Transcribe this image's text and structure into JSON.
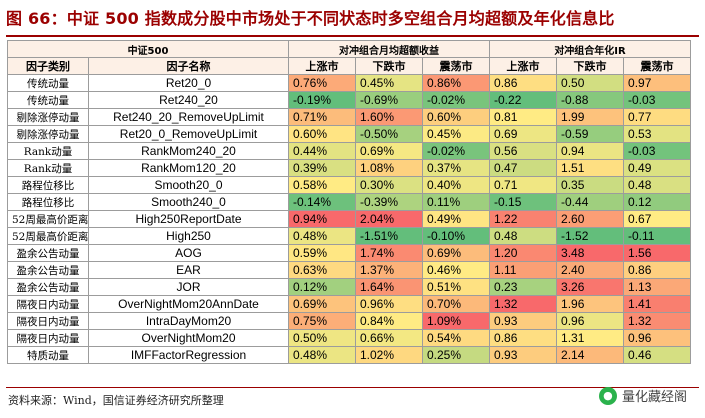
{
  "title": "图 66：中证 500 指数成分股中市场处于不同状态时多空组合月均超额及年化信息比",
  "header": {
    "index_label": "中证500",
    "group_excess": "对冲组合月均超额收益",
    "group_ir": "对冲组合年化IR",
    "col_category": "因子类别",
    "col_factor": "因子名称",
    "states": [
      "上涨市",
      "下跌市",
      "震荡市"
    ]
  },
  "rows": [
    {
      "category": "传统动量",
      "factor": "Ret20_0",
      "excess": [
        "0.76%",
        "0.45%",
        "0.86%"
      ],
      "ir": [
        "0.86",
        "0.50",
        "0.97"
      ]
    },
    {
      "category": "传统动量",
      "factor": "Ret240_20",
      "excess": [
        "-0.19%",
        "-0.69%",
        "-0.02%"
      ],
      "ir": [
        "-0.22",
        "-0.88",
        "-0.03"
      ]
    },
    {
      "category": "剔除涨停动量",
      "factor": "Ret240_20_RemoveUpLimit",
      "excess": [
        "0.71%",
        "1.60%",
        "0.60%"
      ],
      "ir": [
        "0.81",
        "1.99",
        "0.77"
      ]
    },
    {
      "category": "剔除涨停动量",
      "factor": "Ret20_0_RemoveUpLimit",
      "excess": [
        "0.60%",
        "-0.50%",
        "0.45%"
      ],
      "ir": [
        "0.69",
        "-0.59",
        "0.53"
      ]
    },
    {
      "category": "Rank动量",
      "factor": "RankMom240_20",
      "excess": [
        "0.44%",
        "0.69%",
        "-0.02%"
      ],
      "ir": [
        "0.56",
        "0.94",
        "-0.03"
      ]
    },
    {
      "category": "Rank动量",
      "factor": "RankMom120_20",
      "excess": [
        "0.39%",
        "1.08%",
        "0.37%"
      ],
      "ir": [
        "0.47",
        "1.51",
        "0.49"
      ]
    },
    {
      "category": "路程位移比",
      "factor": "Smooth20_0",
      "excess": [
        "0.58%",
        "0.30%",
        "0.40%"
      ],
      "ir": [
        "0.71",
        "0.35",
        "0.48"
      ]
    },
    {
      "category": "路程位移比",
      "factor": "Smooth240_0",
      "excess": [
        "-0.14%",
        "-0.39%",
        "0.11%"
      ],
      "ir": [
        "-0.15",
        "-0.44",
        "0.12"
      ]
    },
    {
      "category": "52周最高价距离",
      "factor": "High250ReportDate",
      "excess": [
        "0.94%",
        "2.04%",
        "0.49%"
      ],
      "ir": [
        "1.22",
        "2.60",
        "0.67"
      ]
    },
    {
      "category": "52周最高价距离",
      "factor": "High250",
      "excess": [
        "0.48%",
        "-1.51%",
        "-0.10%"
      ],
      "ir": [
        "0.48",
        "-1.52",
        "-0.11"
      ]
    },
    {
      "category": "盈余公告动量",
      "factor": "AOG",
      "excess": [
        "0.59%",
        "1.74%",
        "0.69%"
      ],
      "ir": [
        "1.20",
        "3.48",
        "1.56"
      ]
    },
    {
      "category": "盈余公告动量",
      "factor": "EAR",
      "excess": [
        "0.63%",
        "1.37%",
        "0.46%"
      ],
      "ir": [
        "1.11",
        "2.40",
        "0.86"
      ]
    },
    {
      "category": "盈余公告动量",
      "factor": "JOR",
      "excess": [
        "0.12%",
        "1.64%",
        "0.51%"
      ],
      "ir": [
        "0.23",
        "3.26",
        "1.13"
      ]
    },
    {
      "category": "隔夜日内动量",
      "factor": "OverNightMom20AnnDate",
      "excess": [
        "0.69%",
        "0.96%",
        "0.70%"
      ],
      "ir": [
        "1.32",
        "1.96",
        "1.41"
      ]
    },
    {
      "category": "隔夜日内动量",
      "factor": "IntraDayMom20",
      "excess": [
        "0.75%",
        "0.84%",
        "1.09%"
      ],
      "ir": [
        "0.93",
        "0.96",
        "1.32"
      ]
    },
    {
      "category": "隔夜日内动量",
      "factor": "OverNightMom20",
      "excess": [
        "0.50%",
        "0.66%",
        "0.54%"
      ],
      "ir": [
        "0.86",
        "1.31",
        "0.96"
      ]
    },
    {
      "category": "特质动量",
      "factor": "IMFFactorRegression",
      "excess": [
        "0.48%",
        "1.02%",
        "0.25%"
      ],
      "ir": [
        "0.93",
        "2.14",
        "0.46"
      ]
    }
  ],
  "footer": "资料来源：Wind，国信证券经济研究所整理",
  "watermark": "量化藏经阁",
  "colors": {
    "title": "#9b0000",
    "header_bg": "#fdf0e6",
    "low": "#63be7b",
    "mid": "#ffeb84",
    "high": "#f8696b"
  }
}
